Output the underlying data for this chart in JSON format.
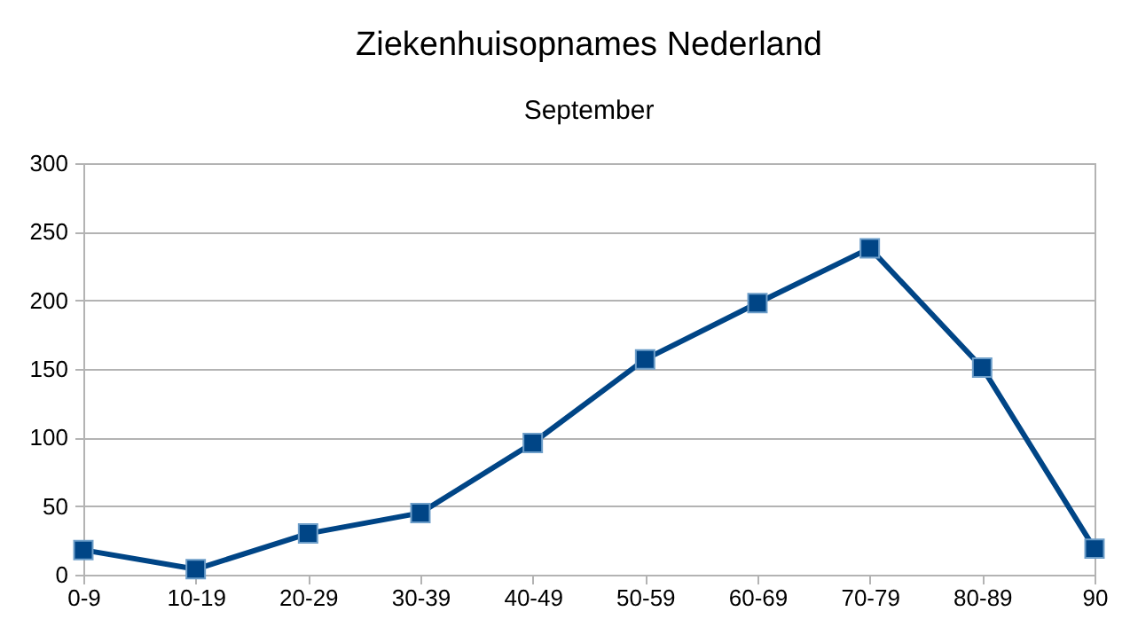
{
  "chart_data": {
    "type": "line",
    "title": "Ziekenhuisopnames Nederland",
    "subtitle": "September",
    "categories": [
      "0-9",
      "10-19",
      "20-29",
      "30-39",
      "40-49",
      "50-59",
      "60-69",
      "70-79",
      "80-89",
      "90"
    ],
    "series": [
      {
        "color": "#004586",
        "values": [
          18,
          4,
          30,
          45,
          96,
          157,
          198,
          238,
          151,
          19
        ]
      }
    ],
    "ylim": [
      0,
      300
    ],
    "yticks": [
      0,
      50,
      100,
      150,
      200,
      250,
      300
    ],
    "grid": "y",
    "marker": "square",
    "line_style": "solid",
    "legend": false
  }
}
